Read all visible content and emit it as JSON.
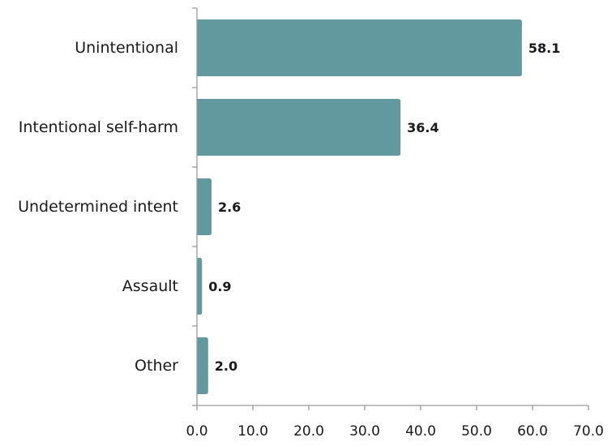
{
  "chart_data": {
    "type": "bar",
    "orientation": "horizontal",
    "categories": [
      "Unintentional",
      "Intentional self-harm",
      "Undetermined intent",
      "Assault",
      "Other"
    ],
    "values": [
      58.1,
      36.4,
      2.6,
      0.9,
      2.0
    ],
    "data_labels": [
      "58.1",
      "36.4",
      "2.6",
      "0.9",
      "2.0"
    ],
    "xlim": [
      0,
      70
    ],
    "xticks": [
      0,
      10,
      20,
      30,
      40,
      50,
      60,
      70
    ],
    "xtick_labels": [
      "0.0",
      "10.0",
      "20.0",
      "30.0",
      "40.0",
      "50.0",
      "60.0",
      "70.0"
    ],
    "grid": false,
    "legend": "none",
    "bar_color": "#62999e"
  }
}
